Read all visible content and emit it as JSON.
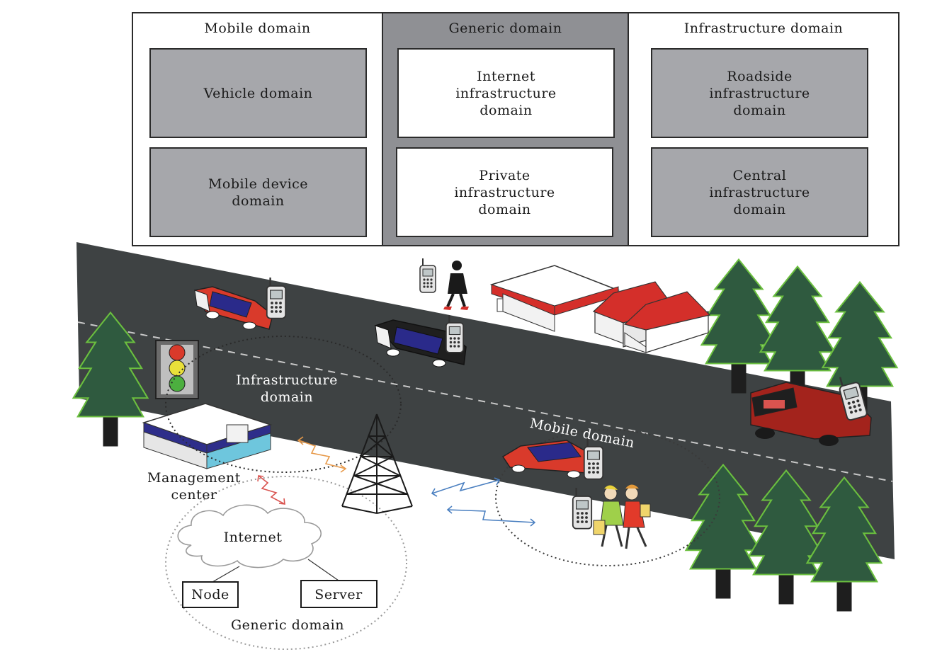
{
  "table": {
    "mobile": {
      "title": "Mobile domain",
      "cell1": "Vehicle domain",
      "cell2": "Mobile device\ndomain"
    },
    "generic": {
      "title": "Generic domain",
      "cell1": "Internet\ninfrastructure\ndomain",
      "cell2": "Private\ninfrastructure\ndomain"
    },
    "infra": {
      "title": "Infrastructure domain",
      "cell1": "Roadside\ninfrastructure\ndomain",
      "cell2": "Central\ninfrastructure\ndomain"
    }
  },
  "scene": {
    "infra_domain_line1": "Infrastructure",
    "infra_domain_line2": "domain",
    "management_line1": "Management",
    "management_line2": "center",
    "internet": "Internet",
    "node": "Node",
    "server": "Server",
    "generic_domain": "Generic domain",
    "mobile_domain": "Mobile domain"
  },
  "colors": {
    "road": "#3e4243",
    "cell_gray": "#a6a7ab",
    "generic_bg": "#8f9094",
    "tree": "#2f5a3f",
    "car_red": "#d93a2b",
    "car_blue": "#2a2a8a",
    "roof_red": "#d42f2a",
    "arrow_orange": "#e79a4b",
    "arrow_red": "#d9534f",
    "arrow_blue": "#4a7fc0"
  }
}
